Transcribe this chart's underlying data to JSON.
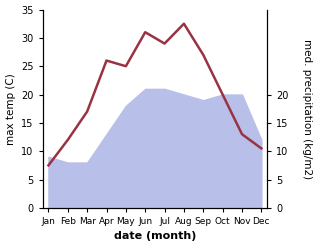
{
  "months": [
    "Jan",
    "Feb",
    "Mar",
    "Apr",
    "May",
    "Jun",
    "Jul",
    "Aug",
    "Sep",
    "Oct",
    "Nov",
    "Dec"
  ],
  "temperature": [
    7.5,
    12.0,
    17.0,
    26.0,
    25.0,
    31.0,
    29.0,
    32.5,
    27.0,
    20.0,
    13.0,
    10.5
  ],
  "precipitation": [
    9,
    8,
    8,
    13,
    18,
    21,
    21,
    20,
    19,
    20,
    20,
    12
  ],
  "temp_color": "#993344",
  "precip_fill_color": "#b8bfe8",
  "xlabel": "date (month)",
  "ylabel_left": "max temp (C)",
  "ylabel_right": "med. precipitation (kg/m2)",
  "ylim_left": [
    0,
    35
  ],
  "ylim_right": [
    0,
    35
  ],
  "yticks_left": [
    0,
    5,
    10,
    15,
    20,
    25,
    30,
    35
  ],
  "yticks_right": [
    0,
    5,
    10,
    15,
    20
  ],
  "background_color": "#ffffff"
}
